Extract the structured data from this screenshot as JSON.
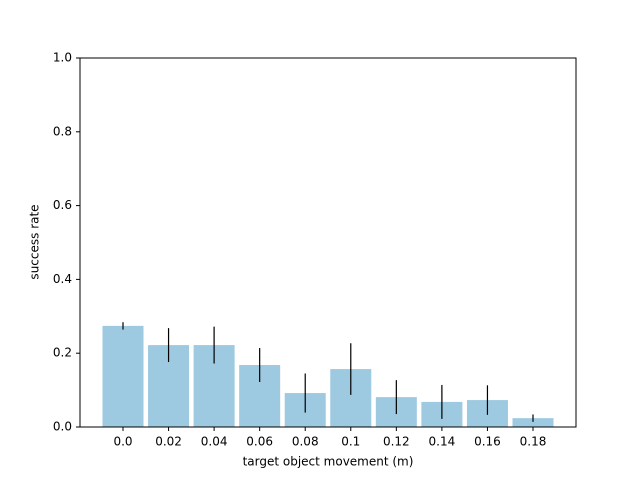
{
  "chart_data": {
    "type": "bar",
    "xlabel": "target object movement (m)",
    "ylabel": "success rate",
    "categories": [
      "0.0",
      "0.02",
      "0.04",
      "0.06",
      "0.08",
      "0.1",
      "0.12",
      "0.14",
      "0.16",
      "0.18"
    ],
    "values": [
      0.274,
      0.222,
      0.222,
      0.168,
      0.092,
      0.157,
      0.081,
      0.068,
      0.073,
      0.024
    ],
    "errors": [
      0.01,
      0.046,
      0.05,
      0.046,
      0.053,
      0.07,
      0.046,
      0.046,
      0.04,
      0.01
    ],
    "color": "#9ecae1",
    "error_color": "#000000",
    "ylim": [
      0,
      1
    ],
    "yticks": [
      {
        "value": 0,
        "label": "0.0"
      },
      0.2,
      0.4,
      0.6,
      0.8,
      {
        "value": 1,
        "label": "1.0"
      }
    ],
    "grid": false
  }
}
